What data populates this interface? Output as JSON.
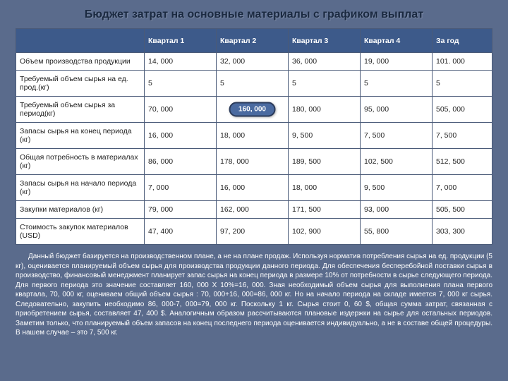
{
  "title": "Бюджет затрат на основные материалы с графиком выплат",
  "table": {
    "columns": [
      "",
      "Квартал 1",
      "Квартал 2",
      "Квартал 3",
      "Квартал 4",
      "За год"
    ],
    "col_widths": [
      "182px",
      "78px",
      "78px",
      "78px",
      "78px",
      "78px"
    ],
    "header_bg": "#3d5a8a",
    "header_color": "#ffffff",
    "cell_bg": "#ffffff",
    "border_color": "#4a5a78",
    "fontsize": 10.5,
    "rows": [
      {
        "label": "Объем производства продукции",
        "cells": [
          "14, 000",
          "32, 000",
          "36, 000",
          "19, 000",
          "101. 000"
        ]
      },
      {
        "label": "Требуемый объем сырья на ед. прод.(кг)",
        "cells": [
          "5",
          "5",
          "5",
          "5",
          "5"
        ]
      },
      {
        "label": "Требуемый объем сырья за период(кг)",
        "cells": [
          "70, 000",
          "",
          "180, 000",
          "95, 000",
          "505, 000"
        ],
        "callout_index": 1,
        "callout_text": "160, 000"
      },
      {
        "label": "Запасы сырья на конец периода (кг)",
        "cells": [
          "16, 000",
          "18, 000",
          "9, 500",
          "7, 500",
          "7, 500"
        ]
      },
      {
        "label": "Общая потребность в материалах (кг)",
        "cells": [
          "86, 000",
          "178, 000",
          "189, 500",
          "102, 500",
          "512, 500"
        ]
      },
      {
        "label": "Запасы сырья на начало периода (кг)",
        "cells": [
          "7, 000",
          "16, 000",
          "18, 000",
          "9, 500",
          "7, 000"
        ]
      },
      {
        "label": "Закупки материалов (кг)",
        "cells": [
          "79, 000",
          "162, 000",
          "171, 500",
          "93, 000",
          "505, 500"
        ]
      },
      {
        "label": "Стоимость закупок материалов (USD)",
        "cells": [
          "47, 400",
          "97, 200",
          "102, 900",
          "55, 800",
          "303, 300"
        ]
      }
    ]
  },
  "body_text": "Данный бюджет базируется на производственном плане, а не на плане продаж. Используя норматив потребления сырья на ед. продукции (5 кг), оценивается планируемый объем сырья для производства продукции данного периода. Для обеспечения бесперебойной поставки сырья в производство, финансовый менеджмент планирует запас сырья на конец периода в размере 10% от потребности в сырье следующего периода. Для первого периода это значение составляет 160, 000 X 10%=16, 000. Зная необходимый объем сырья для выполнения плана первого квартала, 70, 000 кг, оцениваем общий объем сырья : 70, 000+16, 000=86, 000 кг. Но на начало периода на складе имеется 7, 000 кг сырья. Следовательно, закупить необходимо 86, 000-7, 000=79, 000 кг. Поскольку 1 кг. Сырья стоит 0, 60 $, общая сумма затрат, связанная с приобретением сырья, составляет 47, 400 $. Аналогичным образом рассчитываются плановые издержки на сырье для остальных периодов. Заметим только, что планируемый объем запасов на конец последнего периода оценивается индивидуально, а не в составе общей процедуры. В нашем случае – это 7, 500 кг.",
  "colors": {
    "page_bg": "#5a6b8c",
    "title_color": "#1a2940",
    "body_text_color": "#ffffff",
    "callout_bg": "#4a6aa0",
    "callout_border": "#2a3a5a"
  }
}
